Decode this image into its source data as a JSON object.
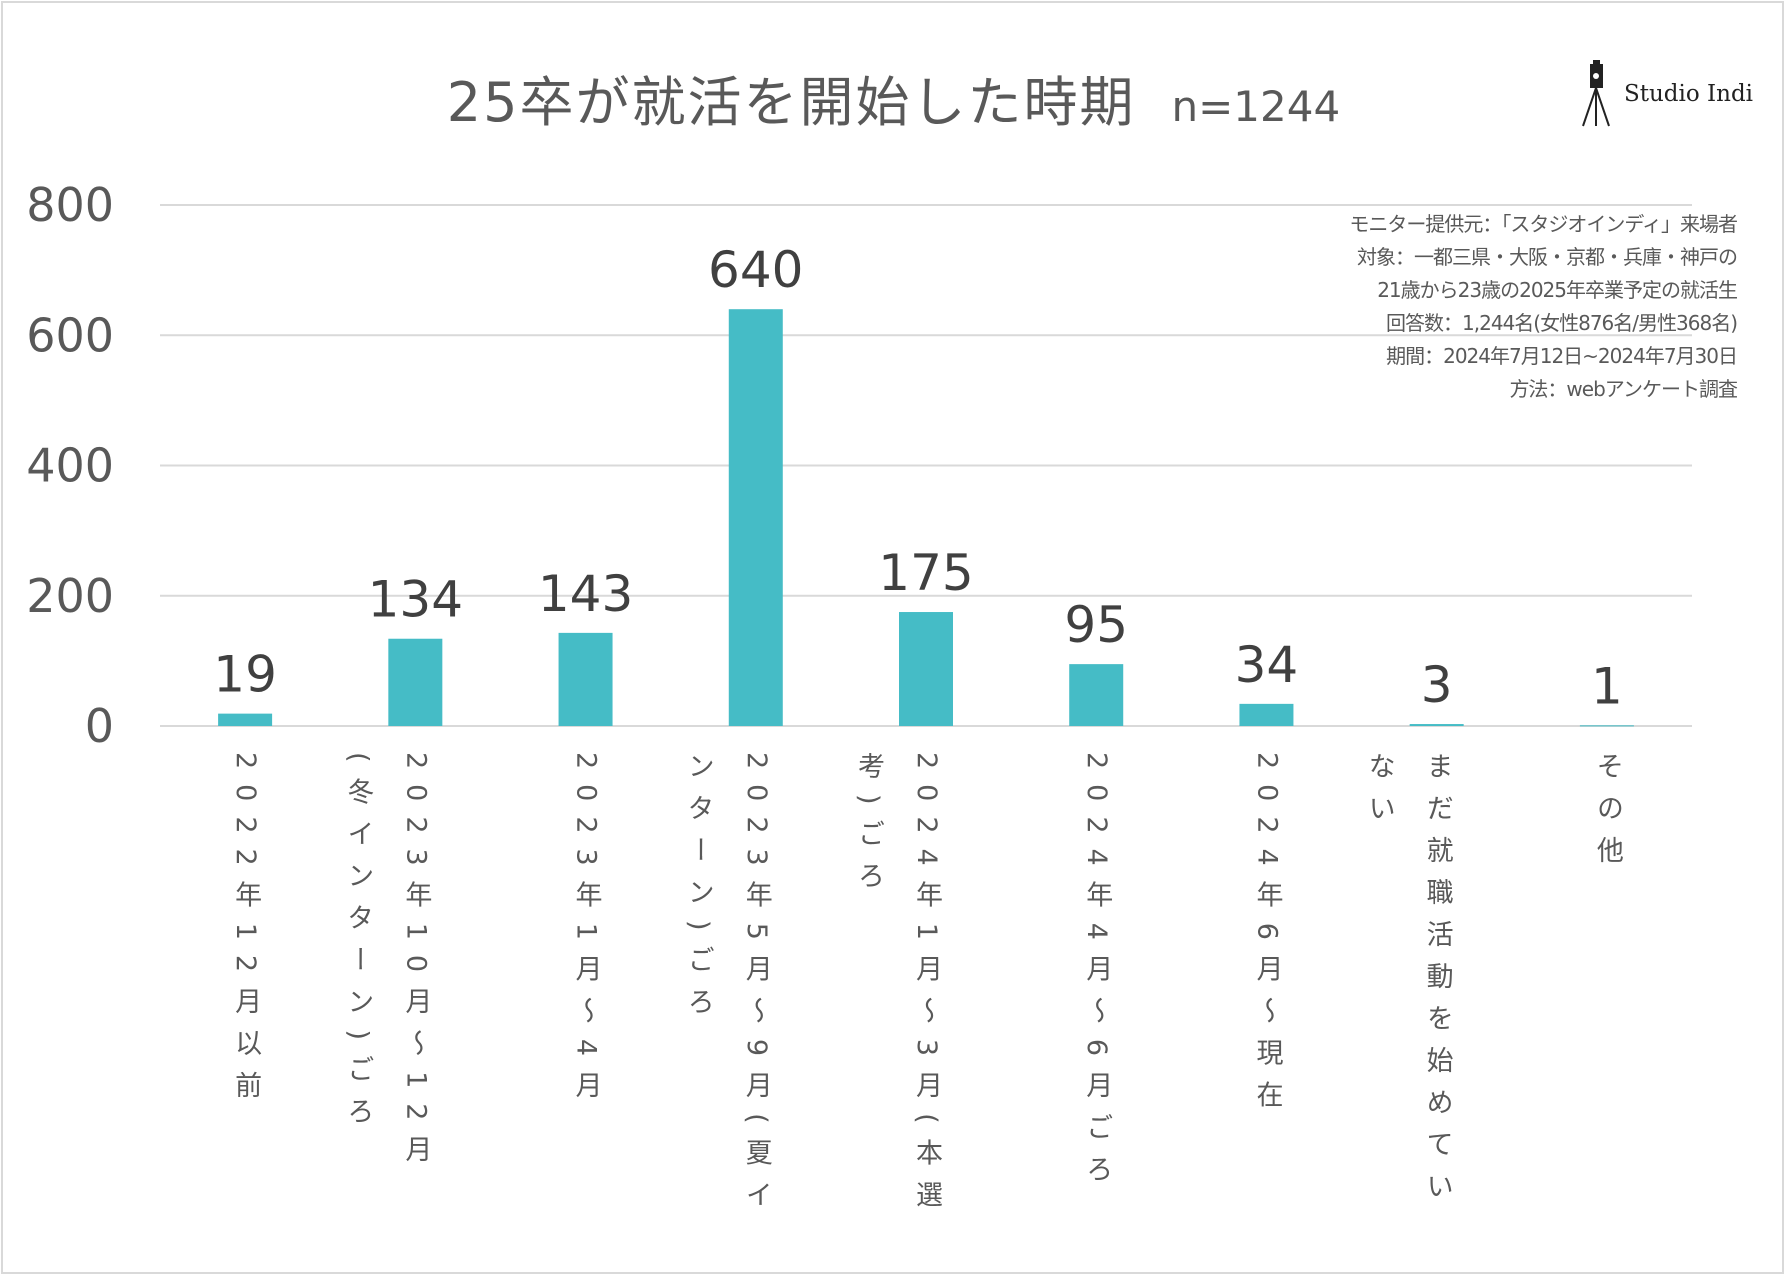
{
  "title": "25卒が就活を開始した時期",
  "sample_size": "n=1244",
  "logo": {
    "text": "Studio Indi",
    "icon": "tripod-camera-icon"
  },
  "notes": [
    "モニター提供元：「スタジオインディ」来場者",
    "対象：一都三県・大阪・京都・兵庫・神戸の",
    "21歳から23歳の2025年卒業予定の就活生",
    "回答数：1,244名(女性876名/男性368名)",
    "期間：2024年7月12日~2024年7月30日",
    "方法：webアンケート調査"
  ],
  "chart_data": {
    "type": "bar",
    "title": "25卒が就活を開始した時期",
    "categories": [
      "2022年12月以前",
      "2023年10月～12月(冬インターン)ごろ",
      "2023年1月～4月",
      "2023年5月～9月(夏インターン)ごろ",
      "2024年1月～3月(本選考)ごろ",
      "2024年4月～6月ごろ",
      "2024年6月～現在",
      "まだ就職活動を始めていない",
      "その他"
    ],
    "values": [
      19,
      134,
      143,
      640,
      175,
      95,
      34,
      3,
      1
    ],
    "data_labels": [
      "19",
      "134",
      "143",
      "640",
      "175",
      "95",
      "34",
      "3",
      "1"
    ],
    "ylim": [
      0,
      800
    ],
    "yticks": [
      0,
      200,
      400,
      600,
      800
    ],
    "ytick_labels": [
      "0",
      "200",
      "400",
      "600",
      "800"
    ],
    "grid": true,
    "legend": "none",
    "bar_color": "#45BCC6",
    "grid_color": "#d9d9d9"
  }
}
